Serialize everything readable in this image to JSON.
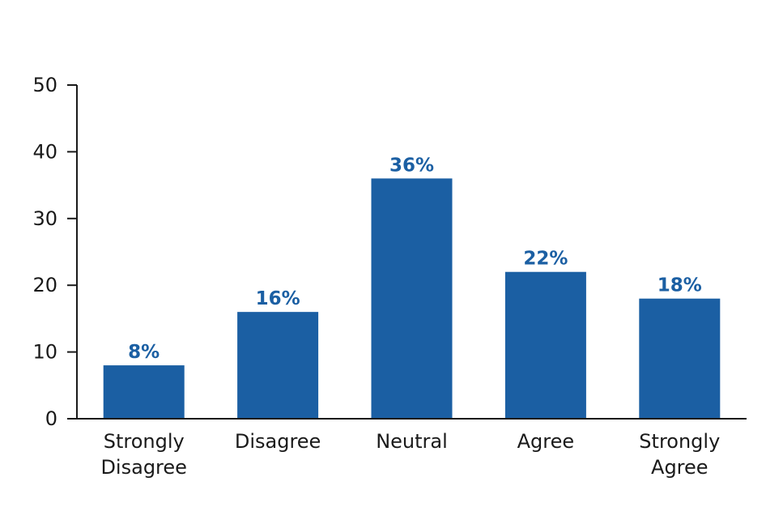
{
  "chart_data": {
    "type": "bar",
    "categories": [
      [
        "Strongly",
        "Disagree"
      ],
      [
        "Disagree"
      ],
      [
        "Neutral"
      ],
      [
        "Agree"
      ],
      [
        "Strongly",
        "Agree"
      ]
    ],
    "values": [
      8,
      16,
      36,
      22,
      18
    ],
    "data_labels": [
      "8%",
      "16%",
      "36%",
      "22%",
      "18%"
    ],
    "title": "",
    "xlabel": "",
    "ylabel": "",
    "ylim": [
      0,
      50
    ],
    "yticks": [
      0,
      10,
      20,
      30,
      40,
      50
    ],
    "grid": false,
    "legend": "none",
    "colors": {
      "bar": "#1b5fa3",
      "data_label": "#1b5fa3",
      "axis": "#1a1a1a"
    }
  }
}
